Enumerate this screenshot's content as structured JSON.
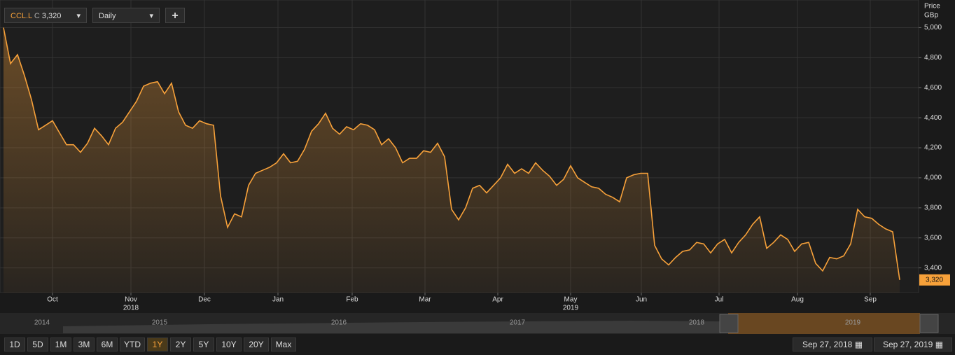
{
  "toolbar": {
    "symbol": "CCL.L",
    "quote_prefix": "C",
    "quote": "3,320",
    "interval": "Daily",
    "add": "+"
  },
  "chart_data": {
    "type": "area",
    "axis_title": "Price",
    "axis_unit": "GBp",
    "color": "#f7a13a",
    "values": [
      5000,
      4760,
      4820,
      4680,
      4520,
      4320,
      4350,
      4380,
      4300,
      4220,
      4220,
      4170,
      4230,
      4330,
      4280,
      4220,
      4330,
      4370,
      4440,
      4510,
      4610,
      4630,
      4640,
      4560,
      4630,
      4440,
      4350,
      4330,
      4380,
      4360,
      4350,
      3880,
      3670,
      3760,
      3740,
      3950,
      4030,
      4050,
      4070,
      4100,
      4160,
      4100,
      4110,
      4190,
      4310,
      4360,
      4430,
      4330,
      4290,
      4340,
      4320,
      4360,
      4350,
      4320,
      4220,
      4260,
      4200,
      4100,
      4130,
      4130,
      4180,
      4170,
      4230,
      4140,
      3790,
      3720,
      3800,
      3930,
      3950,
      3900,
      3950,
      4000,
      4090,
      4030,
      4060,
      4030,
      4100,
      4050,
      4010,
      3950,
      3990,
      4080,
      4000,
      3970,
      3940,
      3930,
      3890,
      3870,
      3840,
      4000,
      4020,
      4030,
      4030,
      3550,
      3460,
      3420,
      3470,
      3510,
      3520,
      3570,
      3560,
      3500,
      3560,
      3590,
      3500,
      3570,
      3620,
      3690,
      3740,
      3530,
      3570,
      3620,
      3590,
      3510,
      3560,
      3570,
      3430,
      3380,
      3470,
      3460,
      3480,
      3560,
      3790,
      3740,
      3730,
      3690,
      3660,
      3640,
      3320
    ],
    "last_value_label": "3,320",
    "xlim": [
      0,
      130.5
    ],
    "xticks": [
      {
        "value": 7,
        "label": "Oct"
      },
      {
        "value": 18.2,
        "label": "Nov"
      },
      {
        "value": 28.7,
        "label": "Dec"
      },
      {
        "value": 39.2,
        "label": "Jan"
      },
      {
        "value": 49.8,
        "label": "Feb"
      },
      {
        "value": 60.2,
        "label": "Mar"
      },
      {
        "value": 70.6,
        "label": "Apr"
      },
      {
        "value": 81,
        "label": "May"
      },
      {
        "value": 91.1,
        "label": "Jun"
      },
      {
        "value": 102.2,
        "label": "Jul"
      },
      {
        "value": 113.4,
        "label": "Aug"
      },
      {
        "value": 123.8,
        "label": "Sep"
      }
    ],
    "year_labels": [
      {
        "value": 18.2,
        "label": "2018"
      },
      {
        "value": 81,
        "label": "2019"
      }
    ],
    "ylim": [
      3235,
      5184
    ],
    "yticks": [
      {
        "value": 3400,
        "label": "3,400"
      },
      {
        "value": 3600,
        "label": "3,600"
      },
      {
        "value": 3800,
        "label": "3,800"
      },
      {
        "value": 4000,
        "label": "4,000"
      },
      {
        "value": 4200,
        "label": "4,200"
      },
      {
        "value": 4400,
        "label": "4,400"
      },
      {
        "value": 4600,
        "label": "4,600"
      },
      {
        "value": 4800,
        "label": "4,800"
      },
      {
        "value": 5000,
        "label": "5,000"
      }
    ],
    "grid": true
  },
  "navigator": {
    "years": [
      "2014",
      "2015",
      "2016",
      "2017",
      "2018",
      "2019"
    ]
  },
  "ranges": [
    "1D",
    "5D",
    "1M",
    "3M",
    "6M",
    "YTD",
    "1Y",
    "2Y",
    "5Y",
    "10Y",
    "20Y",
    "Max"
  ],
  "selected_range": "1Y",
  "date_from": "Sep 27, 2018",
  "date_to": "Sep 27, 2019"
}
